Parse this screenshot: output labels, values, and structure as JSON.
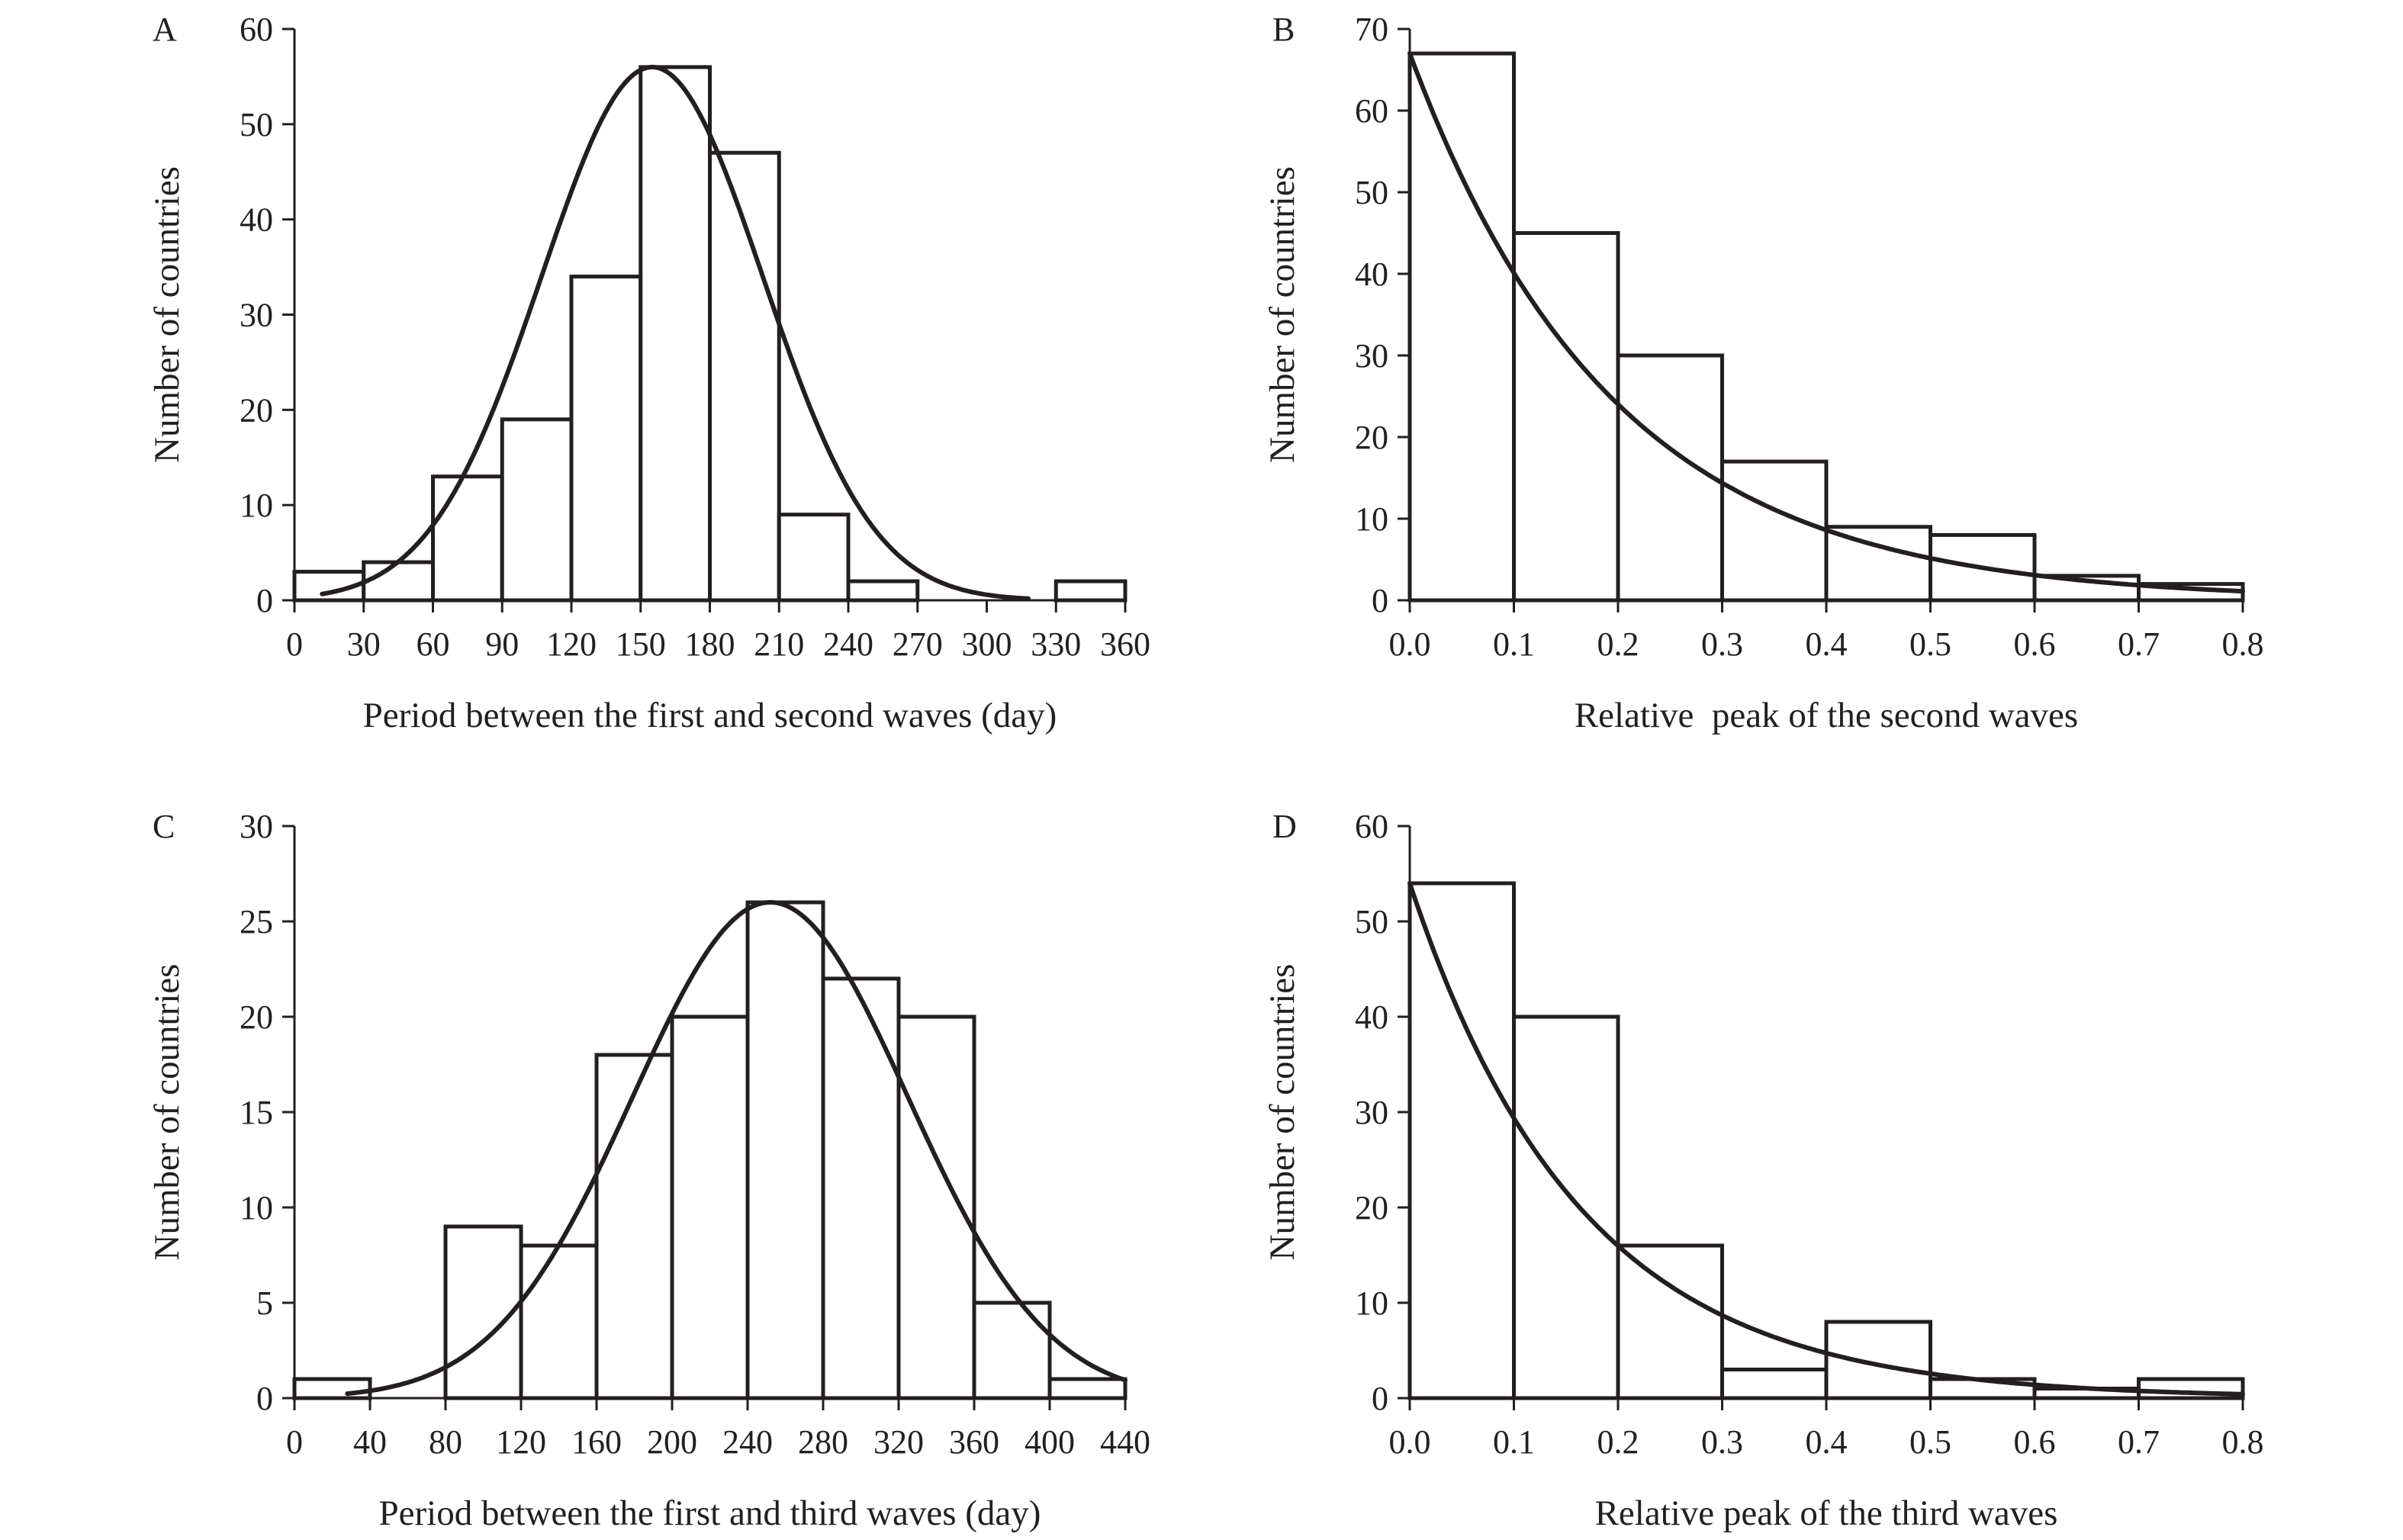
{
  "chart_data": [
    {
      "panel": "A",
      "type": "bar",
      "xlabel": "Period between the first and second waves (day)",
      "ylabel": "Number of countries",
      "xlim": [
        0,
        360
      ],
      "ylim": [
        0,
        60
      ],
      "x_ticks": [
        "0",
        "30",
        "60",
        "90",
        "120",
        "150",
        "180",
        "210",
        "240",
        "270",
        "300",
        "330",
        "360"
      ],
      "x_tick_values": [
        0,
        30,
        60,
        90,
        120,
        150,
        180,
        210,
        240,
        270,
        300,
        330,
        360
      ],
      "y_ticks": [
        "0",
        "10",
        "20",
        "30",
        "40",
        "50",
        "60"
      ],
      "y_tick_values": [
        0,
        10,
        20,
        30,
        40,
        50,
        60
      ],
      "bins": [
        [
          0,
          30
        ],
        [
          30,
          60
        ],
        [
          60,
          90
        ],
        [
          90,
          120
        ],
        [
          120,
          150
        ],
        [
          150,
          180
        ],
        [
          180,
          210
        ],
        [
          210,
          240
        ],
        [
          240,
          270
        ],
        [
          270,
          300
        ],
        [
          300,
          330
        ],
        [
          330,
          360
        ]
      ],
      "values": [
        3,
        4,
        13,
        19,
        34,
        56,
        47,
        9,
        2,
        0,
        0,
        2
      ],
      "fit": {
        "type": "normal",
        "peak": 56,
        "mean": 155,
        "sd": 48,
        "x_range": [
          12,
          318
        ]
      },
      "grid": false,
      "legend": "none"
    },
    {
      "panel": "B",
      "type": "bar",
      "xlabel": "Relative  peak of the second waves",
      "ylabel": "Number of countries",
      "xlim": [
        0,
        0.8
      ],
      "ylim": [
        0,
        70
      ],
      "x_ticks": [
        "0.0",
        "0.1",
        "0.2",
        "0.3",
        "0.4",
        "0.5",
        "0.6",
        "0.7",
        "0.8"
      ],
      "x_tick_values": [
        0,
        0.1,
        0.2,
        0.3,
        0.4,
        0.5,
        0.6,
        0.7,
        0.8
      ],
      "y_ticks": [
        "0",
        "10",
        "20",
        "30",
        "40",
        "50",
        "60",
        "70"
      ],
      "y_tick_values": [
        0,
        10,
        20,
        30,
        40,
        50,
        60,
        70
      ],
      "bins": [
        [
          0,
          0.1
        ],
        [
          0.1,
          0.2
        ],
        [
          0.2,
          0.3
        ],
        [
          0.3,
          0.4
        ],
        [
          0.4,
          0.5
        ],
        [
          0.5,
          0.6
        ],
        [
          0.6,
          0.7
        ],
        [
          0.7,
          0.8
        ]
      ],
      "values": [
        67,
        45,
        30,
        17,
        9,
        8,
        3,
        2
      ],
      "fit": {
        "type": "exponential",
        "a": 67,
        "rate": 5.13,
        "x_range": [
          0,
          0.8
        ]
      },
      "grid": false,
      "legend": "none"
    },
    {
      "panel": "C",
      "type": "bar",
      "xlabel": "Period between the first and third waves (day)",
      "ylabel": "Number of countries",
      "xlim": [
        0,
        440
      ],
      "ylim": [
        0,
        30
      ],
      "x_ticks": [
        "0",
        "40",
        "80",
        "120",
        "160",
        "200",
        "240",
        "280",
        "320",
        "360",
        "400",
        "440"
      ],
      "x_tick_values": [
        0,
        40,
        80,
        120,
        160,
        200,
        240,
        280,
        320,
        360,
        400,
        440
      ],
      "y_ticks": [
        "0",
        "5",
        "10",
        "15",
        "20",
        "25",
        "30"
      ],
      "y_tick_values": [
        0,
        5,
        10,
        15,
        20,
        25,
        30
      ],
      "bins": [
        [
          0,
          40
        ],
        [
          40,
          80
        ],
        [
          80,
          120
        ],
        [
          120,
          160
        ],
        [
          160,
          200
        ],
        [
          200,
          240
        ],
        [
          240,
          280
        ],
        [
          280,
          320
        ],
        [
          320,
          360
        ],
        [
          360,
          400
        ],
        [
          400,
          440
        ]
      ],
      "values": [
        1,
        0,
        9,
        8,
        18,
        20,
        26,
        22,
        20,
        5,
        1
      ],
      "fit": {
        "type": "normal",
        "peak": 26,
        "mean": 252,
        "sd": 73,
        "x_range": [
          28,
          440
        ]
      },
      "grid": false,
      "legend": "none"
    },
    {
      "panel": "D",
      "type": "bar",
      "xlabel": "Relative peak of the third waves",
      "ylabel": "Number of countries",
      "xlim": [
        0,
        0.8
      ],
      "ylim": [
        0,
        60
      ],
      "x_ticks": [
        "0.0",
        "0.1",
        "0.2",
        "0.3",
        "0.4",
        "0.5",
        "0.6",
        "0.7",
        "0.8"
      ],
      "x_tick_values": [
        0,
        0.1,
        0.2,
        0.3,
        0.4,
        0.5,
        0.6,
        0.7,
        0.8
      ],
      "y_ticks": [
        "0",
        "10",
        "20",
        "30",
        "40",
        "50",
        "60"
      ],
      "y_tick_values": [
        0,
        10,
        20,
        30,
        40,
        50,
        60
      ],
      "bins": [
        [
          0,
          0.1
        ],
        [
          0.1,
          0.2
        ],
        [
          0.2,
          0.3
        ],
        [
          0.3,
          0.4
        ],
        [
          0.4,
          0.5
        ],
        [
          0.5,
          0.6
        ],
        [
          0.6,
          0.7
        ],
        [
          0.7,
          0.8
        ]
      ],
      "values": [
        54,
        40,
        16,
        3,
        8,
        2,
        1,
        2
      ],
      "fit": {
        "type": "exponential",
        "a": 54,
        "rate": 6.09,
        "x_range": [
          0,
          0.8
        ]
      },
      "grid": false,
      "legend": "none"
    }
  ]
}
